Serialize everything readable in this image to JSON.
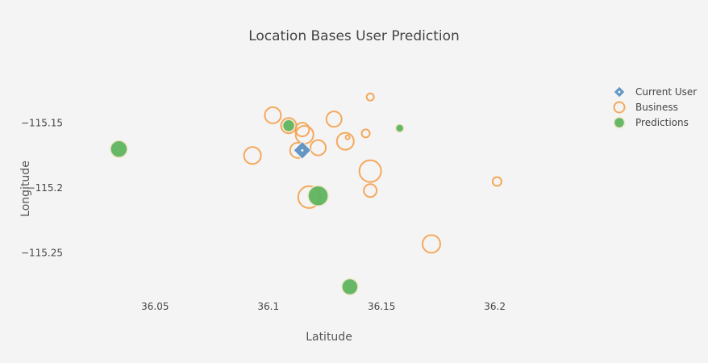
{
  "chart_data": {
    "type": "scatter",
    "title": "Location Bases User Prediction",
    "xlabel": "Latitude",
    "ylabel": "Longitude",
    "xlim": [
      36.01,
      36.245
    ],
    "ylim": [
      -115.28,
      -115.105
    ],
    "x_ticks": [
      {
        "value": 36.05,
        "label": "36.05"
      },
      {
        "value": 36.1,
        "label": "36.1"
      },
      {
        "value": 36.15,
        "label": "36.15"
      },
      {
        "value": 36.2,
        "label": "36.2"
      }
    ],
    "y_ticks": [
      {
        "value": -115.15,
        "label": "−115.15"
      },
      {
        "value": -115.2,
        "label": "−115.2"
      },
      {
        "value": -115.25,
        "label": "−115.25"
      }
    ],
    "grid": false,
    "legend_position": "top-right",
    "series": [
      {
        "name": "Business",
        "marker": "circle-open",
        "color": "#f5a04a",
        "points": [
          {
            "x": 36.145,
            "y": -115.13,
            "size": 9
          },
          {
            "x": 36.102,
            "y": -115.144,
            "size": 20
          },
          {
            "x": 36.129,
            "y": -115.147,
            "size": 19
          },
          {
            "x": 36.109,
            "y": -115.152,
            "size": 19
          },
          {
            "x": 36.115,
            "y": -115.155,
            "size": 17
          },
          {
            "x": 36.116,
            "y": -115.159,
            "size": 22
          },
          {
            "x": 36.143,
            "y": -115.158,
            "size": 10
          },
          {
            "x": 36.135,
            "y": -115.161,
            "size": 5
          },
          {
            "x": 36.134,
            "y": -115.164,
            "size": 21
          },
          {
            "x": 36.113,
            "y": -115.171,
            "size": 19
          },
          {
            "x": 36.122,
            "y": -115.169,
            "size": 19
          },
          {
            "x": 36.093,
            "y": -115.175,
            "size": 21
          },
          {
            "x": 36.145,
            "y": -115.187,
            "size": 27
          },
          {
            "x": 36.145,
            "y": -115.202,
            "size": 16
          },
          {
            "x": 36.201,
            "y": -115.195,
            "size": 11
          },
          {
            "x": 36.118,
            "y": -115.207,
            "size": 27
          },
          {
            "x": 36.172,
            "y": -115.243,
            "size": 22
          }
        ]
      },
      {
        "name": "Predictions",
        "marker": "circle",
        "color": "#5fb45f",
        "points": [
          {
            "x": 36.034,
            "y": -115.17,
            "size": 21
          },
          {
            "x": 36.109,
            "y": -115.152,
            "size": 15
          },
          {
            "x": 36.158,
            "y": -115.154,
            "size": 10
          },
          {
            "x": 36.122,
            "y": -115.206,
            "size": 25
          },
          {
            "x": 36.136,
            "y": -115.276,
            "size": 20
          }
        ]
      },
      {
        "name": "Current User",
        "marker": "diamond",
        "color": "#5e93c4",
        "points": [
          {
            "x": 36.115,
            "y": -115.171,
            "size": 22
          }
        ]
      }
    ],
    "legend": [
      {
        "name": "Current User",
        "marker": "diamond",
        "color": "#5e93c4"
      },
      {
        "name": "Business",
        "marker": "circle-open",
        "color": "#f5a04a"
      },
      {
        "name": "Predictions",
        "marker": "circle",
        "color": "#5fb45f"
      }
    ]
  }
}
